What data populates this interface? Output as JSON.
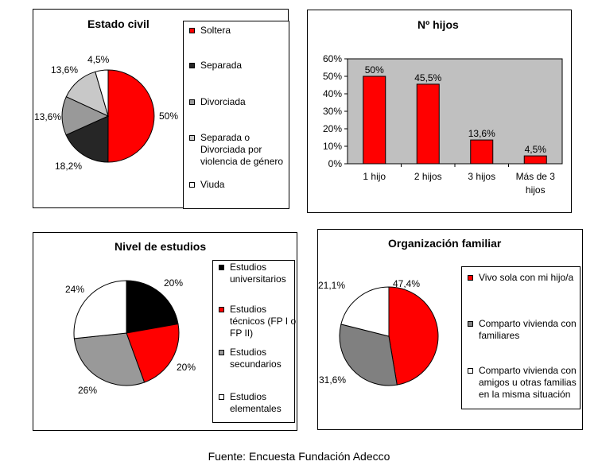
{
  "source_note": "Fuente: Encuesta Fundación Adecco",
  "chart_data": [
    {
      "type": "pie",
      "title": "Estado civil",
      "categories": [
        "Soltera",
        "Separada",
        "Divorciada",
        "Separada o Divorciada por violencia de género",
        "Viuda"
      ],
      "values": [
        50,
        18.2,
        13.6,
        13.6,
        4.5
      ],
      "value_labels": [
        "50%",
        "18,2%",
        "13,6%",
        "13,6%",
        "4,5%"
      ],
      "colors": [
        "#ff0000",
        "#262626",
        "#999999",
        "#c8c8c8",
        "#ffffff"
      ],
      "legend_placement": "right"
    },
    {
      "type": "bar",
      "title": "Nº hijos",
      "categories": [
        "1 hijo",
        "2 hijos",
        "3 hijos",
        "Más de 3 hijos"
      ],
      "values": [
        50,
        45.5,
        13.6,
        4.5
      ],
      "value_labels": [
        "50%",
        "45,5%",
        "13,6%",
        "4,5%"
      ],
      "ylim": [
        0,
        60
      ],
      "yticks": [
        "0%",
        "10%",
        "20%",
        "30%",
        "40%",
        "50%",
        "60%"
      ],
      "bar_color": "#ff0000",
      "plot_background": "#c0c0c0",
      "xlabel": "",
      "ylabel": ""
    },
    {
      "type": "pie",
      "title": "Nivel de estudios",
      "categories": [
        "Estudios universitarios",
        "Estudios técnicos (FP I o FP II)",
        "Estudios secundarios",
        "Estudios elementales"
      ],
      "values": [
        20,
        20,
        26,
        24
      ],
      "value_labels": [
        "20%",
        "20%",
        "26%",
        "24%"
      ],
      "colors": [
        "#000000",
        "#ff0000",
        "#999999",
        "#ffffff"
      ],
      "legend_placement": "right"
    },
    {
      "type": "pie",
      "title": "Organización familiar",
      "categories": [
        "Vivo sola con mi hijo/a",
        "Comparto vivienda con familiares",
        "Comparto vivienda con amigos u otras familias en la misma situación"
      ],
      "values": [
        47.4,
        31.6,
        21.1
      ],
      "value_labels": [
        "47,4%",
        "31,6%",
        "21,1%"
      ],
      "colors": [
        "#ff0000",
        "#808080",
        "#ffffff"
      ],
      "legend_placement": "right"
    }
  ]
}
